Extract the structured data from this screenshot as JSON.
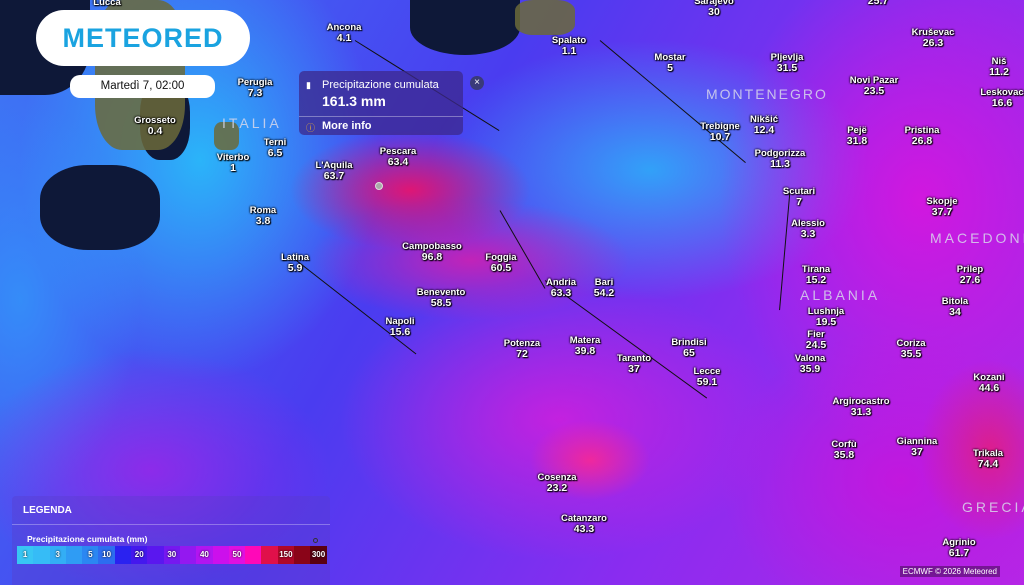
{
  "app": {
    "logo": "METEORED",
    "datetime": "Martedì 7, 02:00"
  },
  "popup": {
    "title": "Precipitazione cumulata",
    "value": "161.3 mm",
    "more": "More info",
    "close_icon": "×"
  },
  "legend": {
    "title": "LEGENDA",
    "subtitle": "Precipitazione cumulata (mm)",
    "steps": [
      {
        "label": "1",
        "color": "#38c6f4"
      },
      {
        "label": "",
        "color": "#36bcf6"
      },
      {
        "label": "3",
        "color": "#33aef5"
      },
      {
        "label": "",
        "color": "#2f9cf4"
      },
      {
        "label": "5",
        "color": "#2b87f2"
      },
      {
        "label": "10",
        "color": "#2c6df0"
      },
      {
        "label": "",
        "color": "#2a22f0"
      },
      {
        "label": "20",
        "color": "#4418ee"
      },
      {
        "label": "",
        "color": "#5a17ef"
      },
      {
        "label": "30",
        "color": "#7618f0"
      },
      {
        "label": "",
        "color": "#9418f0"
      },
      {
        "label": "40",
        "color": "#b215f0"
      },
      {
        "label": "",
        "color": "#cc10ec"
      },
      {
        "label": "50",
        "color": "#e010e0"
      },
      {
        "label": "",
        "color": "#ff08b8"
      },
      {
        "label": "",
        "color": "#e0104a"
      },
      {
        "label": "150",
        "color": "#b0082a"
      },
      {
        "label": "",
        "color": "#8a0418"
      },
      {
        "label": "300",
        "color": "#5a0010"
      }
    ]
  },
  "countries": [
    "ITALIA",
    "MONTENEGRO",
    "ALBANIA",
    "MACEDONIA",
    "GRECIA"
  ],
  "cities": [
    {
      "name": "Lucca",
      "value": ""
    },
    {
      "name": "Ancona",
      "value": "4.1"
    },
    {
      "name": "Perugia",
      "value": "7.3"
    },
    {
      "name": "Grosseto",
      "value": "0.4"
    },
    {
      "name": "Terni",
      "value": "6.5"
    },
    {
      "name": "Viterbo",
      "value": "1"
    },
    {
      "name": "L'Aquila",
      "value": "63.7"
    },
    {
      "name": "Pescara",
      "value": "63.4"
    },
    {
      "name": "Roma",
      "value": "3.8"
    },
    {
      "name": "Latina",
      "value": "5.9"
    },
    {
      "name": "Campobasso",
      "value": "96.8"
    },
    {
      "name": "Foggia",
      "value": "60.5"
    },
    {
      "name": "Benevento",
      "value": "58.5"
    },
    {
      "name": "Andria",
      "value": "63.3"
    },
    {
      "name": "Bari",
      "value": "54.2"
    },
    {
      "name": "Napoli",
      "value": "15.6"
    },
    {
      "name": "Potenza",
      "value": "72"
    },
    {
      "name": "Matera",
      "value": "39.8"
    },
    {
      "name": "Brindisi",
      "value": "65"
    },
    {
      "name": "Taranto",
      "value": "37"
    },
    {
      "name": "Lecce",
      "value": "59.1"
    },
    {
      "name": "Cosenza",
      "value": "23.2"
    },
    {
      "name": "Catanzaro",
      "value": "43.3"
    },
    {
      "name": "Sarajevo",
      "value": "30"
    },
    {
      "name": "",
      "value": "25.7"
    },
    {
      "name": "Kruševac",
      "value": "26.3"
    },
    {
      "name": "Niš",
      "value": "11.2"
    },
    {
      "name": "Spalato",
      "value": "1.1"
    },
    {
      "name": "Mostar",
      "value": "5"
    },
    {
      "name": "Pljevlja",
      "value": "31.5"
    },
    {
      "name": "Novi Pazar",
      "value": "23.5"
    },
    {
      "name": "Leskovac",
      "value": "16.6"
    },
    {
      "name": "Trebigne",
      "value": "10.7"
    },
    {
      "name": "Nikšić",
      "value": "12.4"
    },
    {
      "name": "Pejë",
      "value": "31.8"
    },
    {
      "name": "Pristina",
      "value": "26.8"
    },
    {
      "name": "Podgorizza",
      "value": "11.3"
    },
    {
      "name": "Scutari",
      "value": "7"
    },
    {
      "name": "Alessio",
      "value": "3.3"
    },
    {
      "name": "Skopje",
      "value": "37.7"
    },
    {
      "name": "Tirana",
      "value": "15.2"
    },
    {
      "name": "Prilep",
      "value": "27.6"
    },
    {
      "name": "Bitola",
      "value": "34"
    },
    {
      "name": "Lushnja",
      "value": "19.5"
    },
    {
      "name": "Fier",
      "value": "24.5"
    },
    {
      "name": "Coriza",
      "value": "35.5"
    },
    {
      "name": "Valona",
      "value": "35.9"
    },
    {
      "name": "Kozani",
      "value": "44.6"
    },
    {
      "name": "Argirocastro",
      "value": "31.3"
    },
    {
      "name": "Corfù",
      "value": "35.8"
    },
    {
      "name": "Giannina",
      "value": "37"
    },
    {
      "name": "Trikala",
      "value": "74.4"
    },
    {
      "name": "Agrinio",
      "value": "61.7"
    }
  ],
  "credit": "ECMWF © 2026 Meteored"
}
